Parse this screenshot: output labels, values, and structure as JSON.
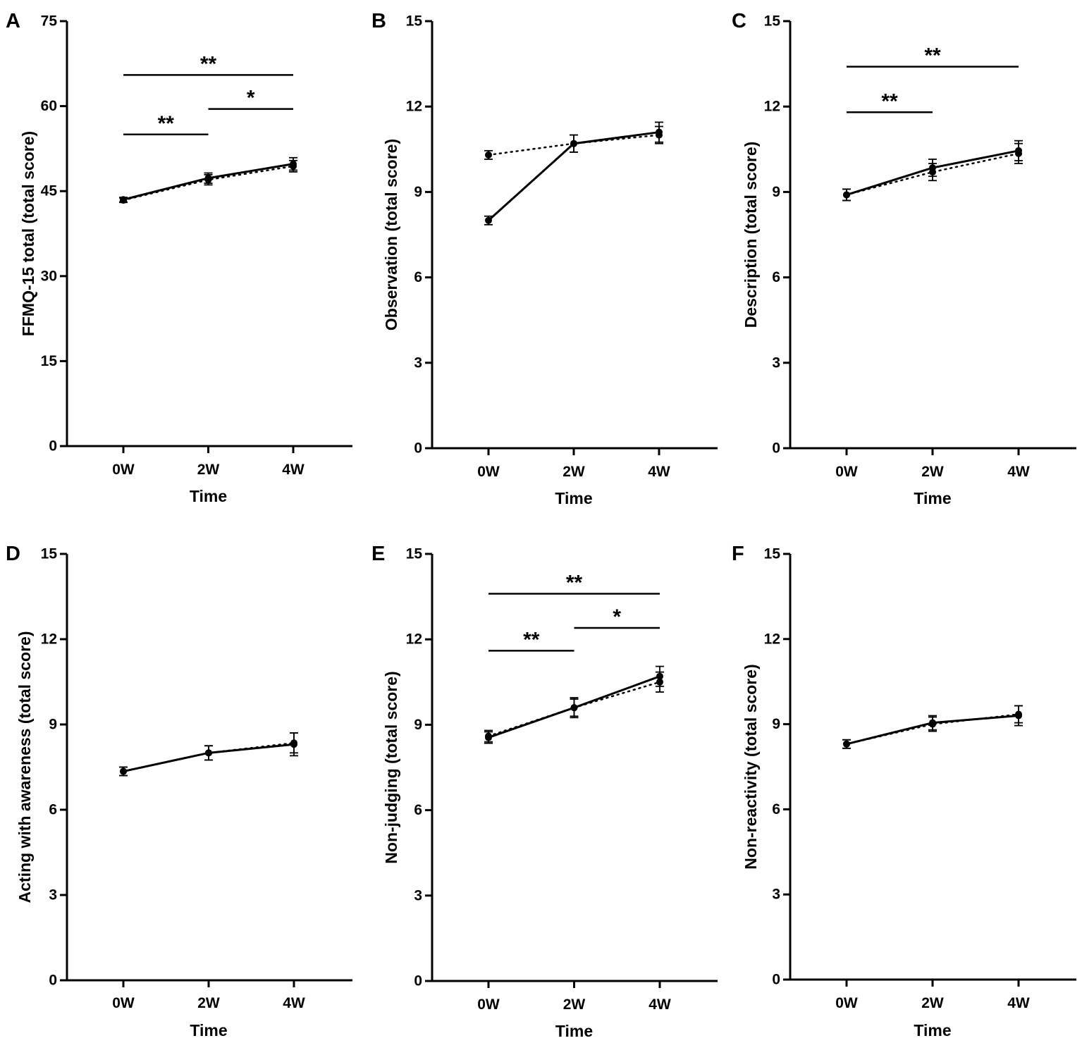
{
  "chart_data": [
    {
      "type": "line",
      "panel": "A",
      "ylabel": "FFMQ-15 total (total score)",
      "xlabel": "Time",
      "categories": [
        "0W",
        "2W",
        "4W"
      ],
      "ylim": [
        0,
        75
      ],
      "yticks": [
        0,
        15,
        30,
        45,
        60,
        75
      ],
      "series": [
        {
          "name": "solid",
          "style": "solid",
          "values": [
            43.5,
            47.3,
            49.8
          ],
          "errors": [
            0.4,
            0.9,
            1.1
          ]
        },
        {
          "name": "dotted",
          "style": "dotted",
          "values": [
            43.4,
            47.0,
            49.4
          ],
          "errors": [
            0.4,
            0.9,
            1.0
          ]
        }
      ],
      "significance": [
        {
          "from": 0,
          "to": 2,
          "label": "**",
          "level": 65.5
        },
        {
          "from": 1,
          "to": 2,
          "label": "*",
          "level": 59.5
        },
        {
          "from": 0,
          "to": 1,
          "label": "**",
          "level": 55.0
        }
      ]
    },
    {
      "type": "line",
      "panel": "B",
      "ylabel": "Observation (total score)",
      "xlabel": "Time",
      "categories": [
        "0W",
        "2W",
        "4W"
      ],
      "ylim": [
        0,
        15
      ],
      "yticks": [
        0,
        3,
        6,
        9,
        12,
        15
      ],
      "series": [
        {
          "name": "solid",
          "style": "solid",
          "values": [
            8.0,
            10.7,
            11.1
          ],
          "errors": [
            0.15,
            0.3,
            0.35
          ]
        },
        {
          "name": "dotted",
          "style": "dotted",
          "values": [
            10.3,
            10.7,
            11.0
          ],
          "errors": [
            0.15,
            0.3,
            0.3
          ]
        }
      ],
      "significance": []
    },
    {
      "type": "line",
      "panel": "C",
      "ylabel": "Description (total score)",
      "xlabel": "Time",
      "categories": [
        "0W",
        "2W",
        "4W"
      ],
      "ylim": [
        0,
        15
      ],
      "yticks": [
        0,
        3,
        6,
        9,
        12,
        15
      ],
      "series": [
        {
          "name": "solid",
          "style": "solid",
          "values": [
            8.9,
            9.85,
            10.45
          ],
          "errors": [
            0.2,
            0.3,
            0.35
          ]
        },
        {
          "name": "dotted",
          "style": "dotted",
          "values": [
            8.9,
            9.7,
            10.35
          ],
          "errors": [
            0.2,
            0.3,
            0.35
          ]
        }
      ],
      "significance": [
        {
          "from": 0,
          "to": 2,
          "label": "**",
          "level": 13.4
        },
        {
          "from": 0,
          "to": 1,
          "label": "**",
          "level": 11.8
        }
      ]
    },
    {
      "type": "line",
      "panel": "D",
      "ylabel": "Acting with awareness (total score)",
      "xlabel": "Time",
      "categories": [
        "0W",
        "2W",
        "4W"
      ],
      "ylim": [
        0,
        15
      ],
      "yticks": [
        0,
        3,
        6,
        9,
        12,
        15
      ],
      "series": [
        {
          "name": "solid",
          "style": "solid",
          "values": [
            7.35,
            8.0,
            8.3
          ],
          "errors": [
            0.15,
            0.25,
            0.4
          ]
        },
        {
          "name": "dotted",
          "style": "dotted",
          "values": [
            7.35,
            8.0,
            8.35
          ],
          "errors": [
            0.15,
            0.25,
            0.35
          ]
        }
      ],
      "significance": []
    },
    {
      "type": "line",
      "panel": "E",
      "ylabel": "Non-judging (total score)",
      "xlabel": "Time",
      "categories": [
        "0W",
        "2W",
        "4W"
      ],
      "ylim": [
        0,
        15
      ],
      "yticks": [
        0,
        3,
        6,
        9,
        12,
        15
      ],
      "series": [
        {
          "name": "solid",
          "style": "solid",
          "values": [
            8.55,
            9.6,
            10.7
          ],
          "errors": [
            0.2,
            0.35,
            0.35
          ]
        },
        {
          "name": "dotted",
          "style": "dotted",
          "values": [
            8.6,
            9.6,
            10.5
          ],
          "errors": [
            0.2,
            0.3,
            0.35
          ]
        }
      ],
      "significance": [
        {
          "from": 0,
          "to": 2,
          "label": "**",
          "level": 13.6
        },
        {
          "from": 1,
          "to": 2,
          "label": "*",
          "level": 12.4
        },
        {
          "from": 0,
          "to": 1,
          "label": "**",
          "level": 11.6
        }
      ]
    },
    {
      "type": "line",
      "panel": "F",
      "ylabel": "Non-reactivity (total score)",
      "xlabel": "Time",
      "categories": [
        "0W",
        "2W",
        "4W"
      ],
      "ylim": [
        0,
        15
      ],
      "yticks": [
        0,
        3,
        6,
        9,
        12,
        15
      ],
      "series": [
        {
          "name": "solid",
          "style": "solid",
          "values": [
            8.3,
            9.05,
            9.3
          ],
          "errors": [
            0.15,
            0.25,
            0.35
          ]
        },
        {
          "name": "dotted",
          "style": "dotted",
          "values": [
            8.3,
            9.0,
            9.35
          ],
          "errors": [
            0.15,
            0.25,
            0.3
          ]
        }
      ],
      "significance": []
    }
  ]
}
